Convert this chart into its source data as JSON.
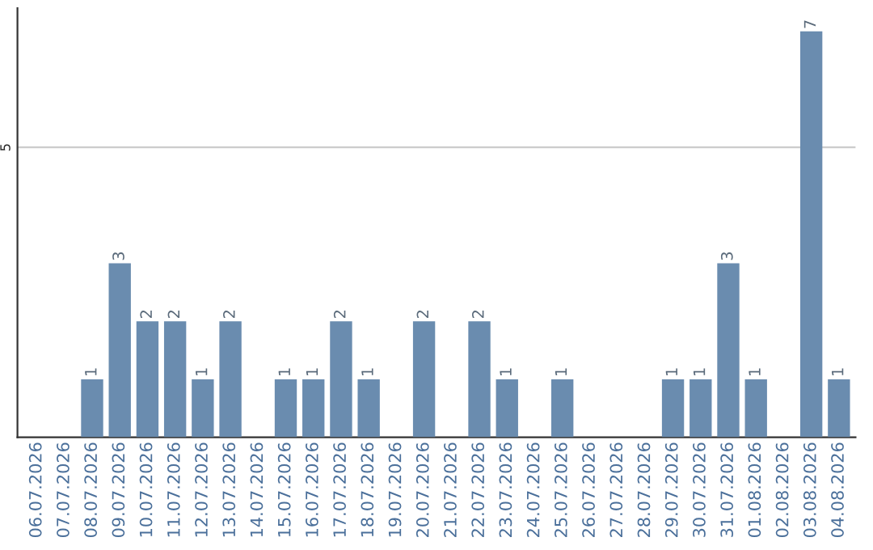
{
  "chart_data": {
    "type": "bar",
    "categories": [
      "06.07.2026",
      "07.07.2026",
      "08.07.2026",
      "09.07.2026",
      "10.07.2026",
      "11.07.2026",
      "12.07.2026",
      "13.07.2026",
      "14.07.2026",
      "15.07.2026",
      "16.07.2026",
      "17.07.2026",
      "18.07.2026",
      "19.07.2026",
      "20.07.2026",
      "21.07.2026",
      "22.07.2026",
      "23.07.2026",
      "24.07.2026",
      "25.07.2026",
      "26.07.2026",
      "27.07.2026",
      "28.07.2026",
      "29.07.2026",
      "30.07.2026",
      "31.07.2026",
      "01.08.2026",
      "02.08.2026",
      "03.08.2026",
      "04.08.2026"
    ],
    "values": [
      0,
      0,
      1,
      3,
      2,
      2,
      1,
      2,
      0,
      1,
      1,
      2,
      1,
      0,
      2,
      0,
      2,
      1,
      0,
      1,
      0,
      0,
      0,
      1,
      1,
      3,
      1,
      0,
      7,
      1
    ],
    "value_labels": [
      null,
      null,
      "1",
      "3",
      "2",
      "2",
      "1",
      "2",
      null,
      "1",
      "1",
      "2",
      "1",
      null,
      "2",
      null,
      "2",
      "1",
      null,
      "1",
      null,
      null,
      null,
      "1",
      "1",
      "3",
      "1",
      null,
      "7",
      "1"
    ],
    "color": "#6a8caf",
    "ylim": [
      0,
      7.4
    ],
    "yticks": [
      5
    ],
    "grid": "y"
  }
}
